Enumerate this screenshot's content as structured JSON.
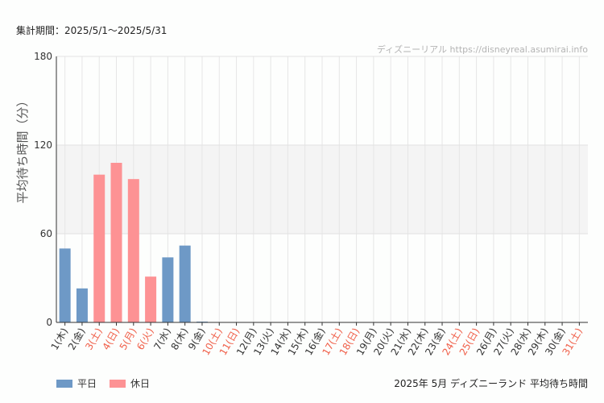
{
  "header": {
    "period": "集計期間：2025/5/1〜2025/5/31",
    "credit": "ディズニーリアル https://disneyreal.asumirai.info"
  },
  "footer": {
    "title": "2025年 5月 ディズニーランド 平均待ち時間"
  },
  "colors": {
    "weekday": "#6e99c6",
    "holiday": "#fd9294",
    "holiday_label": "#f0604a",
    "band": "#f4f4f4"
  },
  "chart_data": {
    "type": "bar",
    "ylabel": "平均待ち時間（分）",
    "ylim": [
      0,
      180
    ],
    "yticks": [
      0,
      60,
      120,
      180
    ],
    "highlight_band": [
      60,
      120
    ],
    "grid": true,
    "legend": {
      "position": "bottom-left",
      "entries": [
        {
          "key": "weekday",
          "label": "平日"
        },
        {
          "key": "holiday",
          "label": "休日"
        }
      ]
    },
    "categories": [
      "1(木)",
      "2(金)",
      "3(土)",
      "4(日)",
      "5(月)",
      "6(火)",
      "7(水)",
      "8(木)",
      "9(金)",
      "10(土)",
      "11(日)",
      "12(月)",
      "13(火)",
      "14(水)",
      "15(木)",
      "16(金)",
      "17(土)",
      "18(日)",
      "19(月)",
      "20(火)",
      "21(水)",
      "22(木)",
      "23(金)",
      "24(土)",
      "25(日)",
      "26(月)",
      "27(火)",
      "28(水)",
      "29(木)",
      "30(金)",
      "31(土)"
    ],
    "day_type": [
      "weekday",
      "weekday",
      "holiday",
      "holiday",
      "holiday",
      "holiday",
      "weekday",
      "weekday",
      "weekday",
      "holiday",
      "holiday",
      "weekday",
      "weekday",
      "weekday",
      "weekday",
      "weekday",
      "holiday",
      "holiday",
      "weekday",
      "weekday",
      "weekday",
      "weekday",
      "weekday",
      "holiday",
      "holiday",
      "weekday",
      "weekday",
      "weekday",
      "weekday",
      "weekday",
      "holiday"
    ],
    "values": [
      50,
      23,
      100,
      108,
      97,
      31,
      44,
      52,
      0.5,
      null,
      null,
      null,
      null,
      null,
      null,
      null,
      null,
      null,
      null,
      null,
      null,
      null,
      null,
      null,
      null,
      null,
      null,
      null,
      null,
      null,
      null
    ]
  }
}
